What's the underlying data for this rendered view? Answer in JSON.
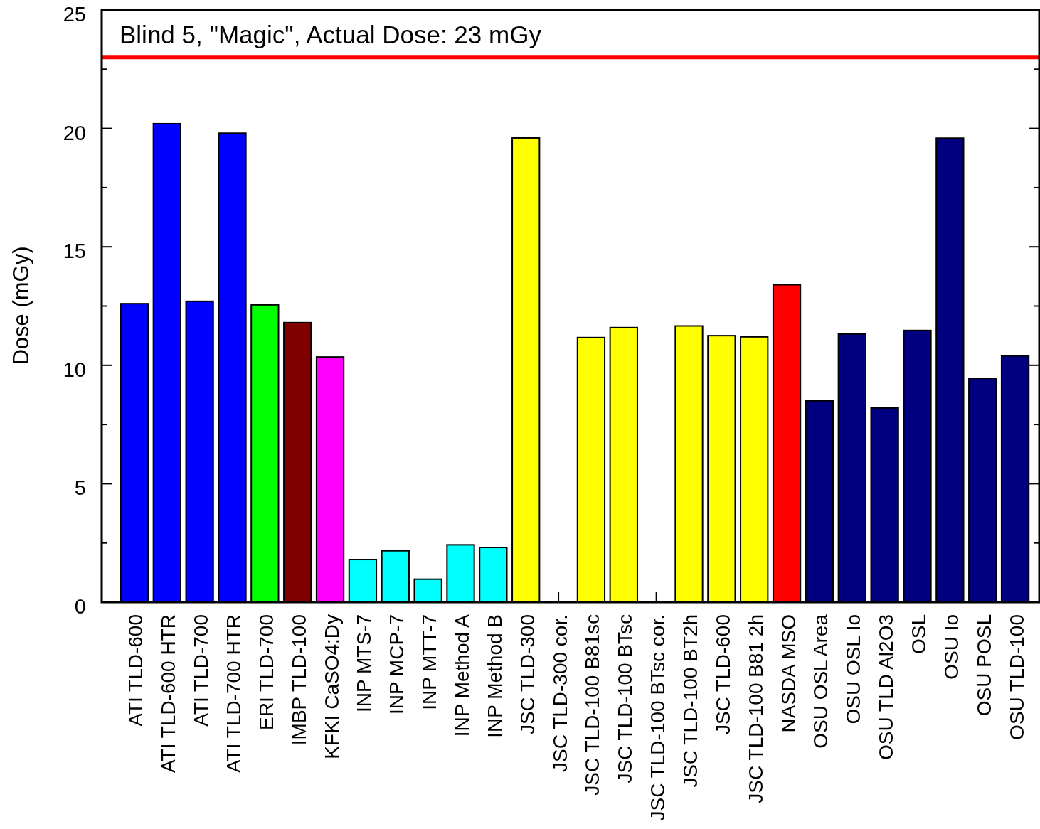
{
  "chart_data": {
    "type": "bar",
    "categories": [
      "ATI TLD-600",
      "ATI TLD-600 HTR",
      "ATI TLD-700",
      "ATI TLD-700 HTR",
      "ERI TLD-700",
      "IMBP TLD-100",
      "KFKI CaSO4:Dy",
      "INP MTS-7",
      "INP MCP-7",
      "INP MTT-7",
      "INP Method A",
      "INP Method B",
      "JSC TLD-300",
      "JSC TLD-300 cor.",
      "JSC TLD-100 B81sc",
      "JSC TLD-100 BTsc",
      "JSC TLD-100 BTsc cor.",
      "JSC TLD-100 BT2h",
      "JSC TLD-600",
      "JSC TLD-100 B81 2h",
      "NASDA MSO",
      "OSU OSL Area",
      "OSU OSL Io",
      "OSU TLD Al2O3",
      "OSL",
      "OSU Io",
      "OSU POSL",
      "OSU TLD-100"
    ],
    "values": [
      12.6,
      20.2,
      12.7,
      19.8,
      12.55,
      11.8,
      10.35,
      1.8,
      2.17,
      0.97,
      2.42,
      2.31,
      19.6,
      null,
      11.17,
      11.59,
      null,
      11.66,
      11.25,
      11.2,
      13.4,
      8.5,
      11.32,
      8.2,
      11.47,
      19.59,
      9.45,
      10.4
    ],
    "colors": [
      "#0000ff",
      "#0000ff",
      "#0000ff",
      "#0000ff",
      "#00ff00",
      "#800000",
      "#ff00ff",
      "#00ffff",
      "#00ffff",
      "#00ffff",
      "#00ffff",
      "#00ffff",
      "#ffff00",
      null,
      "#ffff00",
      "#ffff00",
      null,
      "#ffff00",
      "#ffff00",
      "#ffff00",
      "#ff0000",
      "#000080",
      "#000080",
      "#000080",
      "#000080",
      "#000080",
      "#000080",
      "#000080"
    ],
    "ylabel": "Dose (mGy)",
    "ylim": [
      0,
      25
    ],
    "yticks": [
      0,
      {
        "value": 2.5,
        "label": null
      },
      5,
      {
        "value": 7.5,
        "label": null
      },
      10,
      {
        "value": 12.5,
        "label": null
      },
      15,
      {
        "value": 17.5,
        "label": null
      },
      20,
      {
        "value": 22.5,
        "label": null
      },
      25
    ],
    "ref_lines": [
      {
        "axis": "y",
        "value": 23,
        "label": "Blind 5, \"Magic\", Actual Dose: 23 mGy",
        "color": "#ff0000"
      }
    ]
  }
}
